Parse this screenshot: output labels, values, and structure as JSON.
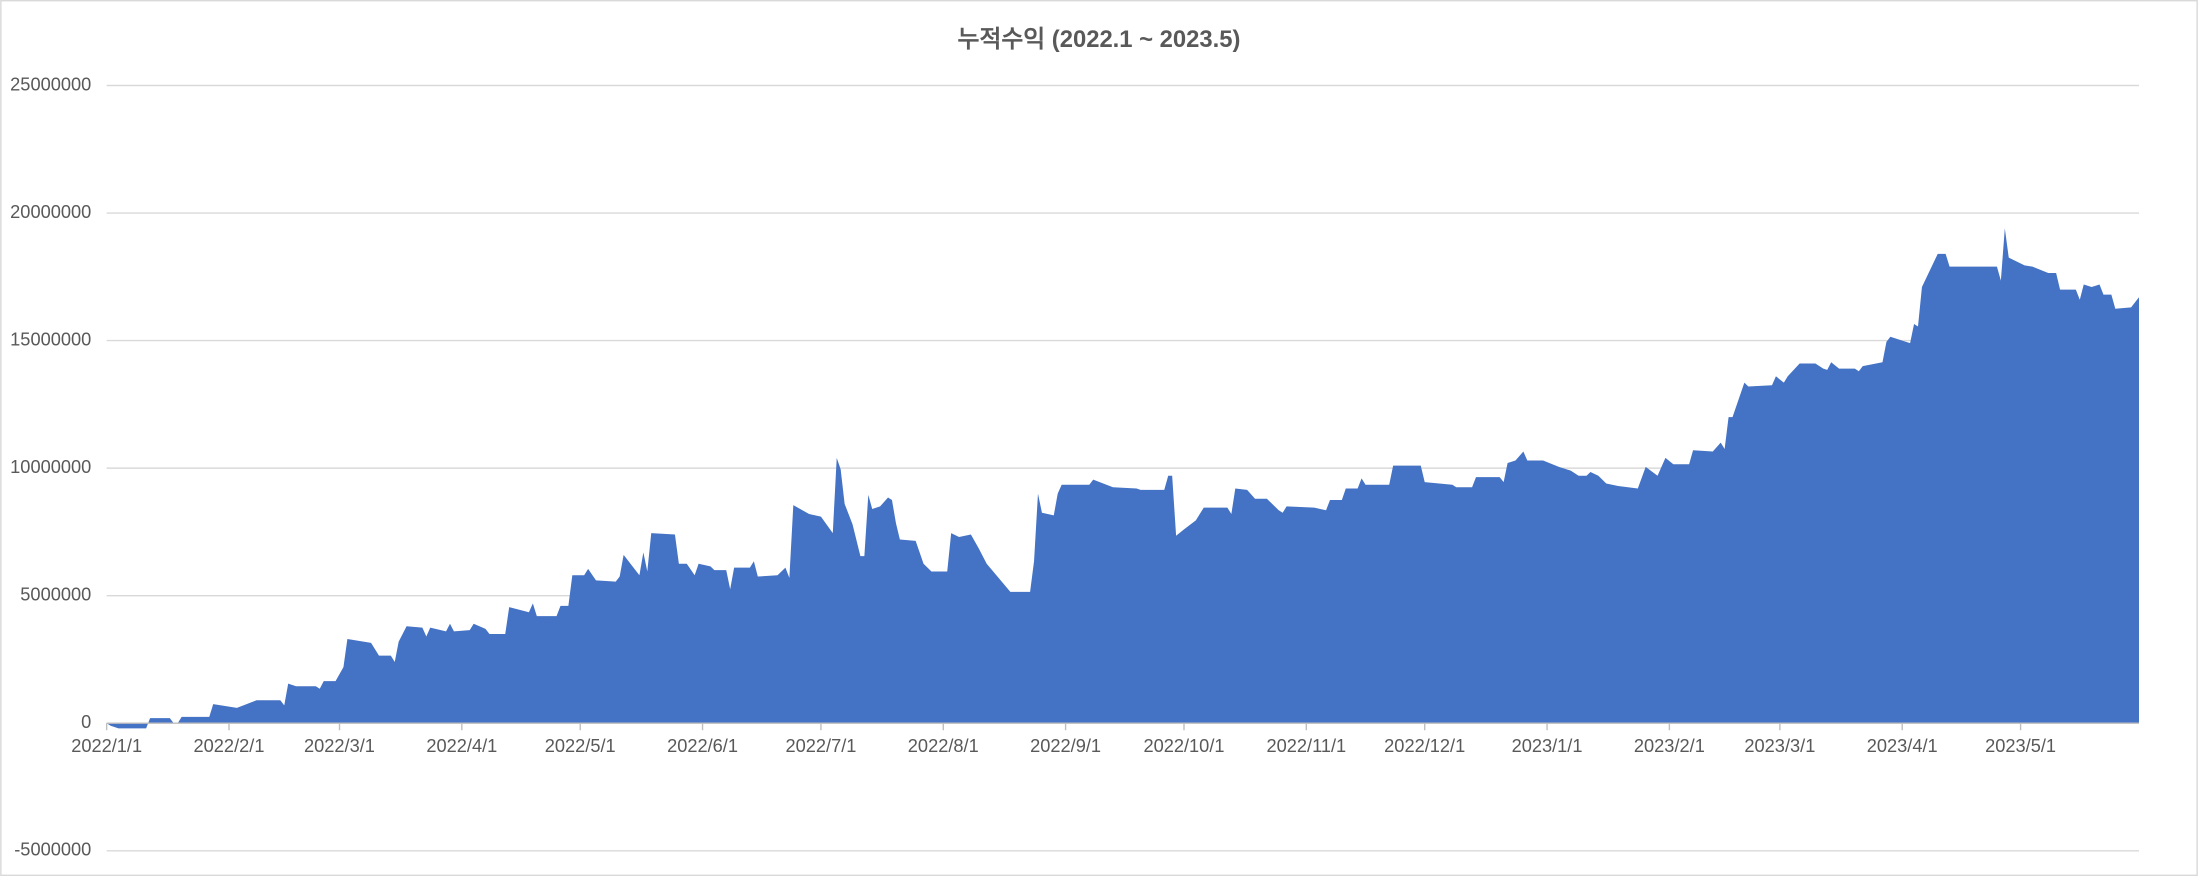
{
  "chart_data": {
    "type": "area",
    "title": "누적수익 (2022.1 ~ 2023.5)",
    "color": "#4472c4",
    "grid": true,
    "ylim": [
      -5000000,
      25000000
    ],
    "yticks": [
      -5000000,
      0,
      5000000,
      10000000,
      15000000,
      20000000,
      25000000
    ],
    "xlim": [
      "2022/1/1",
      "2023/5/31"
    ],
    "xticks": [
      "2022/1/1",
      "2022/2/1",
      "2022/3/1",
      "2022/4/1",
      "2022/5/1",
      "2022/6/1",
      "2022/7/1",
      "2022/8/1",
      "2022/9/1",
      "2022/10/1",
      "2022/11/1",
      "2022/12/1",
      "2023/1/1",
      "2023/2/1",
      "2023/3/1",
      "2023/4/1",
      "2023/5/1"
    ],
    "x": [
      "2022/1/1",
      "2022/1/2",
      "2022/1/4",
      "2022/1/11",
      "2022/1/12",
      "2022/1/17",
      "2022/1/18",
      "2022/1/19",
      "2022/1/20",
      "2022/1/27",
      "2022/1/28",
      "2022/2/3",
      "2022/2/8",
      "2022/2/14",
      "2022/2/15",
      "2022/2/16",
      "2022/2/18",
      "2022/2/23",
      "2022/2/24",
      "2022/2/25",
      "2022/2/28",
      "2022/3/2",
      "2022/3/3",
      "2022/3/9",
      "2022/3/11",
      "2022/3/14",
      "2022/3/15",
      "2022/3/16",
      "2022/3/18",
      "2022/3/22",
      "2022/3/23",
      "2022/3/24",
      "2022/3/28",
      "2022/3/29",
      "2022/3/30",
      "2022/4/3",
      "2022/4/4",
      "2022/4/7",
      "2022/4/8",
      "2022/4/12",
      "2022/4/13",
      "2022/4/18",
      "2022/4/19",
      "2022/4/20",
      "2022/4/25",
      "2022/4/26",
      "2022/4/28",
      "2022/4/29",
      "2022/5/2",
      "2022/5/3",
      "2022/5/5",
      "2022/5/10",
      "2022/5/11",
      "2022/5/12",
      "2022/5/16",
      "2022/5/17",
      "2022/5/18",
      "2022/5/19",
      "2022/5/25",
      "2022/5/26",
      "2022/5/28",
      "2022/5/30",
      "2022/5/31",
      "2022/6/3",
      "2022/6/4",
      "2022/6/7",
      "2022/6/8",
      "2022/6/9",
      "2022/6/13",
      "2022/6/14",
      "2022/6/15",
      "2022/6/20",
      "2022/6/22",
      "2022/6/23",
      "2022/6/24",
      "2022/6/28",
      "2022/7/1",
      "2022/7/4",
      "2022/7/5",
      "2022/7/6",
      "2022/7/7",
      "2022/7/9",
      "2022/7/11",
      "2022/7/12",
      "2022/7/13",
      "2022/7/14",
      "2022/7/16",
      "2022/7/18",
      "2022/7/19",
      "2022/7/20",
      "2022/7/21",
      "2022/7/25",
      "2022/7/27",
      "2022/7/29",
      "2022/8/2",
      "2022/8/3",
      "2022/8/5",
      "2022/8/8",
      "2022/8/10",
      "2022/8/12",
      "2022/8/18",
      "2022/8/23",
      "2022/8/24",
      "2022/8/25",
      "2022/8/26",
      "2022/8/29",
      "2022/8/30",
      "2022/8/31",
      "2022/9/7",
      "2022/9/8",
      "2022/9/13",
      "2022/9/19",
      "2022/9/20",
      "2022/9/26",
      "2022/9/27",
      "2022/9/28",
      "2022/9/29",
      "2022/10/1",
      "2022/10/4",
      "2022/10/6",
      "2022/10/12",
      "2022/10/13",
      "2022/10/14",
      "2022/10/17",
      "2022/10/19",
      "2022/10/22",
      "2022/10/25",
      "2022/10/26",
      "2022/10/27",
      "2022/11/3",
      "2022/11/6",
      "2022/11/7",
      "2022/11/10",
      "2022/11/11",
      "2022/11/14",
      "2022/11/15",
      "2022/11/16",
      "2022/11/22",
      "2022/11/23",
      "2022/11/30",
      "2022/12/1",
      "2022/12/8",
      "2022/12/9",
      "2022/12/13",
      "2022/12/14",
      "2022/12/20",
      "2022/12/21",
      "2022/12/22",
      "2022/12/24",
      "2022/12/26",
      "2022/12/27",
      "2022/12/31",
      "2023/1/4",
      "2023/1/7",
      "2023/1/9",
      "2023/1/11",
      "2023/1/12",
      "2023/1/14",
      "2023/1/16",
      "2023/1/19",
      "2023/1/24",
      "2023/1/26",
      "2023/1/29",
      "2023/1/31",
      "2023/2/2",
      "2023/2/6",
      "2023/2/7",
      "2023/2/12",
      "2023/2/14",
      "2023/2/15",
      "2023/2/16",
      "2023/2/17",
      "2023/2/20",
      "2023/2/21",
      "2023/2/27",
      "2023/2/28",
      "2023/3/2",
      "2023/3/3",
      "2023/3/6",
      "2023/3/10",
      "2023/3/12",
      "2023/3/13",
      "2023/3/14",
      "2023/3/16",
      "2023/3/20",
      "2023/3/21",
      "2023/3/22",
      "2023/3/27",
      "2023/3/28",
      "2023/3/29",
      "2023/4/1",
      "2023/4/3",
      "2023/4/4",
      "2023/4/5",
      "2023/4/6",
      "2023/4/10",
      "2023/4/12",
      "2023/4/13",
      "2023/4/25",
      "2023/4/26",
      "2023/4/27",
      "2023/4/28",
      "2023/5/2",
      "2023/5/4",
      "2023/5/8",
      "2023/5/10",
      "2023/5/11",
      "2023/5/15",
      "2023/5/16",
      "2023/5/17",
      "2023/5/19",
      "2023/5/21",
      "2023/5/22",
      "2023/5/24",
      "2023/5/25",
      "2023/5/29",
      "2023/5/31"
    ],
    "values": [
      0,
      -100000,
      -200000,
      -200000,
      200000,
      200000,
      0,
      0,
      250000,
      250000,
      750000,
      600000,
      900000,
      900000,
      700000,
      1550000,
      1450000,
      1450000,
      1350000,
      1650000,
      1650000,
      2200000,
      3300000,
      3150000,
      2650000,
      2650000,
      2400000,
      3200000,
      3800000,
      3750000,
      3400000,
      3750000,
      3600000,
      3900000,
      3600000,
      3650000,
      3900000,
      3700000,
      3500000,
      3500000,
      4550000,
      4350000,
      4700000,
      4200000,
      4200000,
      4600000,
      4600000,
      5800000,
      5800000,
      6050000,
      5600000,
      5550000,
      5750000,
      6600000,
      5800000,
      6700000,
      5950000,
      7450000,
      7400000,
      6250000,
      6250000,
      5800000,
      6250000,
      6150000,
      6000000,
      6000000,
      5250000,
      6100000,
      6100000,
      6350000,
      5750000,
      5800000,
      6100000,
      5700000,
      8550000,
      8200000,
      8100000,
      7450000,
      10400000,
      9950000,
      8600000,
      7800000,
      6550000,
      6550000,
      8950000,
      8400000,
      8500000,
      8850000,
      8750000,
      7850000,
      7200000,
      7150000,
      6250000,
      5950000,
      5950000,
      7450000,
      7300000,
      7400000,
      6850000,
      6250000,
      5150000,
      5150000,
      6350000,
      9000000,
      8250000,
      8150000,
      9000000,
      9350000,
      9350000,
      9550000,
      9250000,
      9200000,
      9150000,
      9150000,
      9700000,
      9700000,
      7350000,
      7600000,
      7950000,
      8450000,
      8450000,
      8200000,
      9200000,
      9150000,
      8800000,
      8800000,
      8350000,
      8250000,
      8500000,
      8450000,
      8350000,
      8750000,
      8750000,
      9200000,
      9200000,
      9600000,
      9350000,
      9350000,
      10100000,
      10100000,
      9450000,
      9350000,
      9250000,
      9250000,
      9650000,
      9650000,
      9450000,
      10200000,
      10300000,
      10650000,
      10300000,
      10300000,
      10050000,
      9900000,
      9700000,
      9700000,
      9850000,
      9700000,
      9400000,
      9300000,
      9200000,
      10050000,
      9700000,
      10400000,
      10150000,
      10150000,
      10700000,
      10650000,
      11000000,
      10750000,
      12000000,
      12000000,
      13350000,
      13200000,
      13250000,
      13600000,
      13350000,
      13600000,
      14100000,
      14100000,
      13900000,
      13850000,
      14150000,
      13900000,
      13900000,
      13800000,
      14000000,
      14150000,
      14950000,
      15150000,
      15000000,
      14900000,
      15650000,
      15550000,
      17100000,
      18400000,
      18400000,
      17900000,
      17900000,
      17350000,
      19400000,
      18250000,
      17950000,
      17900000,
      17650000,
      17650000,
      17000000,
      17000000,
      16600000,
      17200000,
      17100000,
      17200000,
      16800000,
      16800000,
      16250000,
      16300000,
      16700000
    ]
  }
}
